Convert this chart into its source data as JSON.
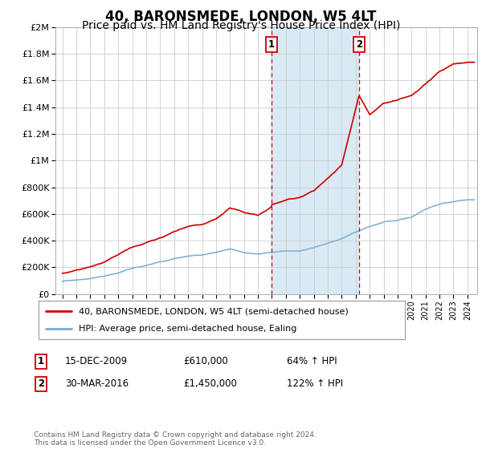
{
  "title": "40, BARONSMEDE, LONDON, W5 4LT",
  "subtitle": "Price paid vs. HM Land Registry's House Price Index (HPI)",
  "title_fontsize": 12,
  "subtitle_fontsize": 10,
  "xlim": [
    1994.5,
    2024.7
  ],
  "ylim": [
    0,
    2000000
  ],
  "yticks": [
    0,
    200000,
    400000,
    600000,
    800000,
    1000000,
    1200000,
    1400000,
    1600000,
    1800000,
    2000000
  ],
  "ytick_labels": [
    "£0",
    "£200K",
    "£400K",
    "£600K",
    "£800K",
    "£1M",
    "£1.2M",
    "£1.4M",
    "£1.6M",
    "£1.8M",
    "£2M"
  ],
  "sale1_year": 2009.96,
  "sale1_price": 610000,
  "sale1_label": "15-DEC-2009",
  "sale1_pct": "64%",
  "sale2_year": 2016.24,
  "sale2_price": 1450000,
  "sale2_label": "30-MAR-2016",
  "sale2_pct": "122%",
  "legend_line1": "40, BARONSMEDE, LONDON, W5 4LT (semi-detached house)",
  "legend_line2": "HPI: Average price, semi-detached house, Ealing",
  "footer": "Contains HM Land Registry data © Crown copyright and database right 2024.\nThis data is licensed under the Open Government Licence v3.0.",
  "red_color": "#cc0000",
  "blue_color": "#7aadcf",
  "shade_color": "#daeaf5",
  "grid_color": "#cccccc",
  "background_color": "#ffffff",
  "hpi_x": [
    1995,
    1996,
    1997,
    1998,
    1999,
    2000,
    2001,
    2002,
    2003,
    2004,
    2005,
    2006,
    2007,
    2008,
    2009,
    2010,
    2011,
    2012,
    2013,
    2014,
    2015,
    2016,
    2017,
    2018,
    2019,
    2020,
    2021,
    2022,
    2023,
    2024
  ],
  "hpi_y": [
    95000,
    108000,
    123000,
    140000,
    165000,
    200000,
    220000,
    245000,
    265000,
    285000,
    295000,
    315000,
    335000,
    310000,
    295000,
    310000,
    315000,
    320000,
    345000,
    380000,
    420000,
    470000,
    510000,
    540000,
    555000,
    580000,
    640000,
    680000,
    700000,
    710000
  ],
  "prop_x": [
    1995,
    1996,
    1997,
    1998,
    1999,
    2000,
    2001,
    2002,
    2003,
    2004,
    2005,
    2006,
    2007,
    2008,
    2009,
    2009.96,
    2010,
    2011,
    2012,
    2013,
    2014,
    2015,
    2016.24,
    2017,
    2018,
    2019,
    2020,
    2021,
    2022,
    2023,
    2024.3
  ],
  "prop_y": [
    155000,
    175000,
    200000,
    230000,
    275000,
    330000,
    360000,
    400000,
    440000,
    475000,
    490000,
    530000,
    605000,
    570000,
    545000,
    610000,
    630000,
    660000,
    680000,
    730000,
    820000,
    920000,
    1450000,
    1300000,
    1380000,
    1400000,
    1430000,
    1510000,
    1600000,
    1660000,
    1680000
  ]
}
